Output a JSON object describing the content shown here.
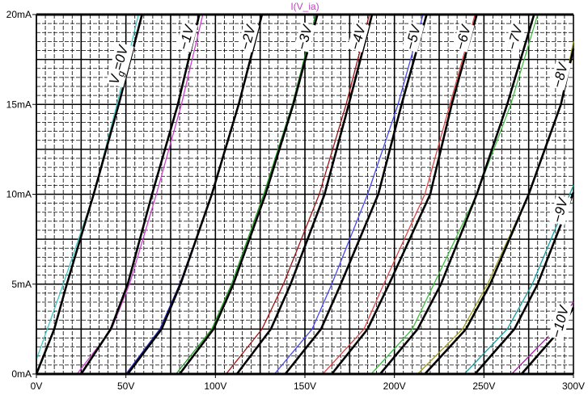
{
  "chart_data": {
    "type": "line",
    "title": "I(V_ia)",
    "title_color": "#c040c0",
    "xlabel": "",
    "ylabel": "",
    "xlim": [
      0,
      300
    ],
    "ylim": [
      0,
      20
    ],
    "x_unit": "V",
    "y_unit": "mA",
    "x_ticks": [
      "0V",
      "50V",
      "100V",
      "150V",
      "200V",
      "250V",
      "300V"
    ],
    "x_tick_values": [
      0,
      50,
      100,
      150,
      200,
      250,
      300
    ],
    "y_ticks": [
      "0mA",
      "5mA",
      "10mA",
      "15mA",
      "20mA"
    ],
    "y_tick_values": [
      0,
      5,
      10,
      15,
      20
    ],
    "grid": true,
    "curve_labels": [
      {
        "prefix": "V",
        "sub": "g",
        "text": "=0V"
      },
      {
        "text": "−1V"
      },
      {
        "text": "−2V"
      },
      {
        "text": "−3V"
      },
      {
        "text": "−4V"
      },
      {
        "text": "−5V"
      },
      {
        "text": "−6V"
      },
      {
        "text": "−7V"
      },
      {
        "text": "−8V"
      },
      {
        "text": "−9V"
      },
      {
        "text": "−10V"
      }
    ],
    "datasheet_series": [
      {
        "name": "Vg=0V",
        "color": "#000000",
        "points": [
          [
            0,
            0
          ],
          [
            10,
            2.5
          ],
          [
            17,
            5
          ],
          [
            32,
            10
          ],
          [
            46,
            15
          ],
          [
            59,
            20
          ]
        ]
      },
      {
        "name": "Vg=-1V",
        "color": "#000000",
        "points": [
          [
            25,
            0
          ],
          [
            41.5,
            2.5
          ],
          [
            51,
            5
          ],
          [
            64.6,
            10
          ],
          [
            79,
            15
          ],
          [
            91,
            20
          ]
        ]
      },
      {
        "name": "Vg=-2V",
        "color": "#000000",
        "points": [
          [
            51,
            0
          ],
          [
            70,
            2.5
          ],
          [
            80.5,
            5
          ],
          [
            98,
            10
          ],
          [
            113,
            15
          ],
          [
            126,
            20
          ]
        ]
      },
      {
        "name": "Vg=-3V",
        "color": "#000000",
        "points": [
          [
            80,
            0
          ],
          [
            99,
            2.5
          ],
          [
            110,
            5
          ],
          [
            128,
            10
          ],
          [
            143.5,
            15
          ],
          [
            157,
            20
          ]
        ]
      },
      {
        "name": "Vg=-4V",
        "color": "#000000",
        "points": [
          [
            112,
            0
          ],
          [
            131,
            2.5
          ],
          [
            142,
            5
          ],
          [
            161,
            10
          ],
          [
            174.5,
            15
          ],
          [
            187.5,
            20
          ]
        ]
      },
      {
        "name": "Vg=-5V",
        "color": "#000000",
        "points": [
          [
            139,
            0
          ],
          [
            159,
            2.5
          ],
          [
            170,
            5
          ],
          [
            191,
            10
          ],
          [
            204,
            15
          ],
          [
            218,
            20
          ]
        ]
      },
      {
        "name": "Vg=-6V",
        "color": "#000000",
        "points": [
          [
            165,
            0
          ],
          [
            185,
            2.5
          ],
          [
            197,
            5
          ],
          [
            220,
            10
          ],
          [
            232,
            15
          ],
          [
            246,
            20
          ]
        ]
      },
      {
        "name": "Vg=-7V",
        "color": "#000000",
        "points": [
          [
            192,
            0
          ],
          [
            213,
            2.5
          ],
          [
            226,
            5
          ],
          [
            246,
            10
          ],
          [
            263,
            15
          ],
          [
            278,
            20
          ]
        ]
      },
      {
        "name": "Vg=-8V",
        "color": "#000000",
        "points": [
          [
            217,
            0
          ],
          [
            240,
            2.5
          ],
          [
            253.5,
            5
          ],
          [
            275,
            10
          ],
          [
            293,
            15
          ],
          [
            300,
            18.1
          ]
        ]
      },
      {
        "name": "Vg=-9V",
        "color": "#000000",
        "points": [
          [
            245,
            0
          ],
          [
            267,
            2.5
          ],
          [
            280,
            5
          ],
          [
            300,
            10.1
          ]
        ]
      },
      {
        "name": "Vg=-10V",
        "color": "#000000",
        "points": [
          [
            271,
            0
          ],
          [
            293,
            2.5
          ],
          [
            300,
            3.7
          ]
        ]
      }
    ],
    "simulated_series": [
      {
        "name": "sim Vg=0V",
        "color": "#40c8c8",
        "points": [
          [
            0,
            0.8
          ],
          [
            15,
            5
          ],
          [
            32,
            10
          ],
          [
            45,
            15
          ],
          [
            57,
            20
          ]
        ]
      },
      {
        "name": "sim Vg=-1V",
        "color": "#d040d0",
        "points": [
          [
            0,
            0
          ],
          [
            22.7,
            0
          ],
          [
            42,
            2.5
          ],
          [
            52,
            5
          ],
          [
            67,
            10
          ],
          [
            81,
            15
          ],
          [
            93,
            20
          ]
        ]
      },
      {
        "name": "sim Vg=-2V",
        "color": "#2020b0",
        "points": [
          [
            0,
            0
          ],
          [
            50,
            0
          ],
          [
            69,
            2.5
          ],
          [
            80,
            5
          ],
          [
            98,
            10
          ],
          [
            113,
            15
          ],
          [
            126,
            20
          ]
        ]
      },
      {
        "name": "sim Vg=-3V",
        "color": "#20a020",
        "points": [
          [
            0,
            0
          ],
          [
            78,
            0
          ],
          [
            98,
            2.5
          ],
          [
            109,
            5
          ],
          [
            127,
            10
          ],
          [
            143,
            15
          ],
          [
            156,
            20
          ]
        ]
      },
      {
        "name": "sim Vg=-4V",
        "color": "#a01010",
        "points": [
          [
            0,
            0
          ],
          [
            106,
            0
          ],
          [
            126,
            2.5
          ],
          [
            138,
            5
          ],
          [
            158,
            10
          ],
          [
            173,
            15
          ],
          [
            186,
            20
          ]
        ]
      },
      {
        "name": "sim Vg=-5V",
        "color": "#4848f0",
        "points": [
          [
            0,
            0
          ],
          [
            133,
            0
          ],
          [
            154,
            2.5
          ],
          [
            165,
            5
          ],
          [
            185,
            10
          ],
          [
            202,
            15
          ],
          [
            216,
            20
          ]
        ]
      },
      {
        "name": "sim Vg=-6V",
        "color": "#e04848",
        "points": [
          [
            0,
            0
          ],
          [
            160,
            0
          ],
          [
            183,
            2.5
          ],
          [
            194,
            5
          ],
          [
            217,
            10
          ],
          [
            231,
            15
          ],
          [
            245,
            20
          ]
        ]
      },
      {
        "name": "sim Vg=-7V",
        "color": "#40c040",
        "points": [
          [
            0,
            0
          ],
          [
            187,
            0
          ],
          [
            210,
            2.5
          ],
          [
            222,
            5
          ],
          [
            246,
            10
          ],
          [
            265,
            15
          ],
          [
            280,
            20
          ]
        ]
      },
      {
        "name": "sim Vg=-8V",
        "color": "#a0a020",
        "points": [
          [
            0,
            0
          ],
          [
            213,
            0
          ],
          [
            238,
            2.5
          ],
          [
            252,
            5
          ],
          [
            275,
            10
          ],
          [
            293,
            15
          ],
          [
            300,
            18.5
          ]
        ]
      },
      {
        "name": "sim Vg=-9V",
        "color": "#10a0a0",
        "points": [
          [
            0,
            0
          ],
          [
            239,
            0
          ],
          [
            263,
            2.5
          ],
          [
            277,
            5
          ],
          [
            300,
            10.5
          ]
        ]
      },
      {
        "name": "sim Vg=-10V",
        "color": "#a020a0",
        "points": [
          [
            0,
            0
          ],
          [
            265.5,
            0
          ],
          [
            290,
            2.5
          ],
          [
            300,
            4
          ]
        ]
      }
    ]
  }
}
